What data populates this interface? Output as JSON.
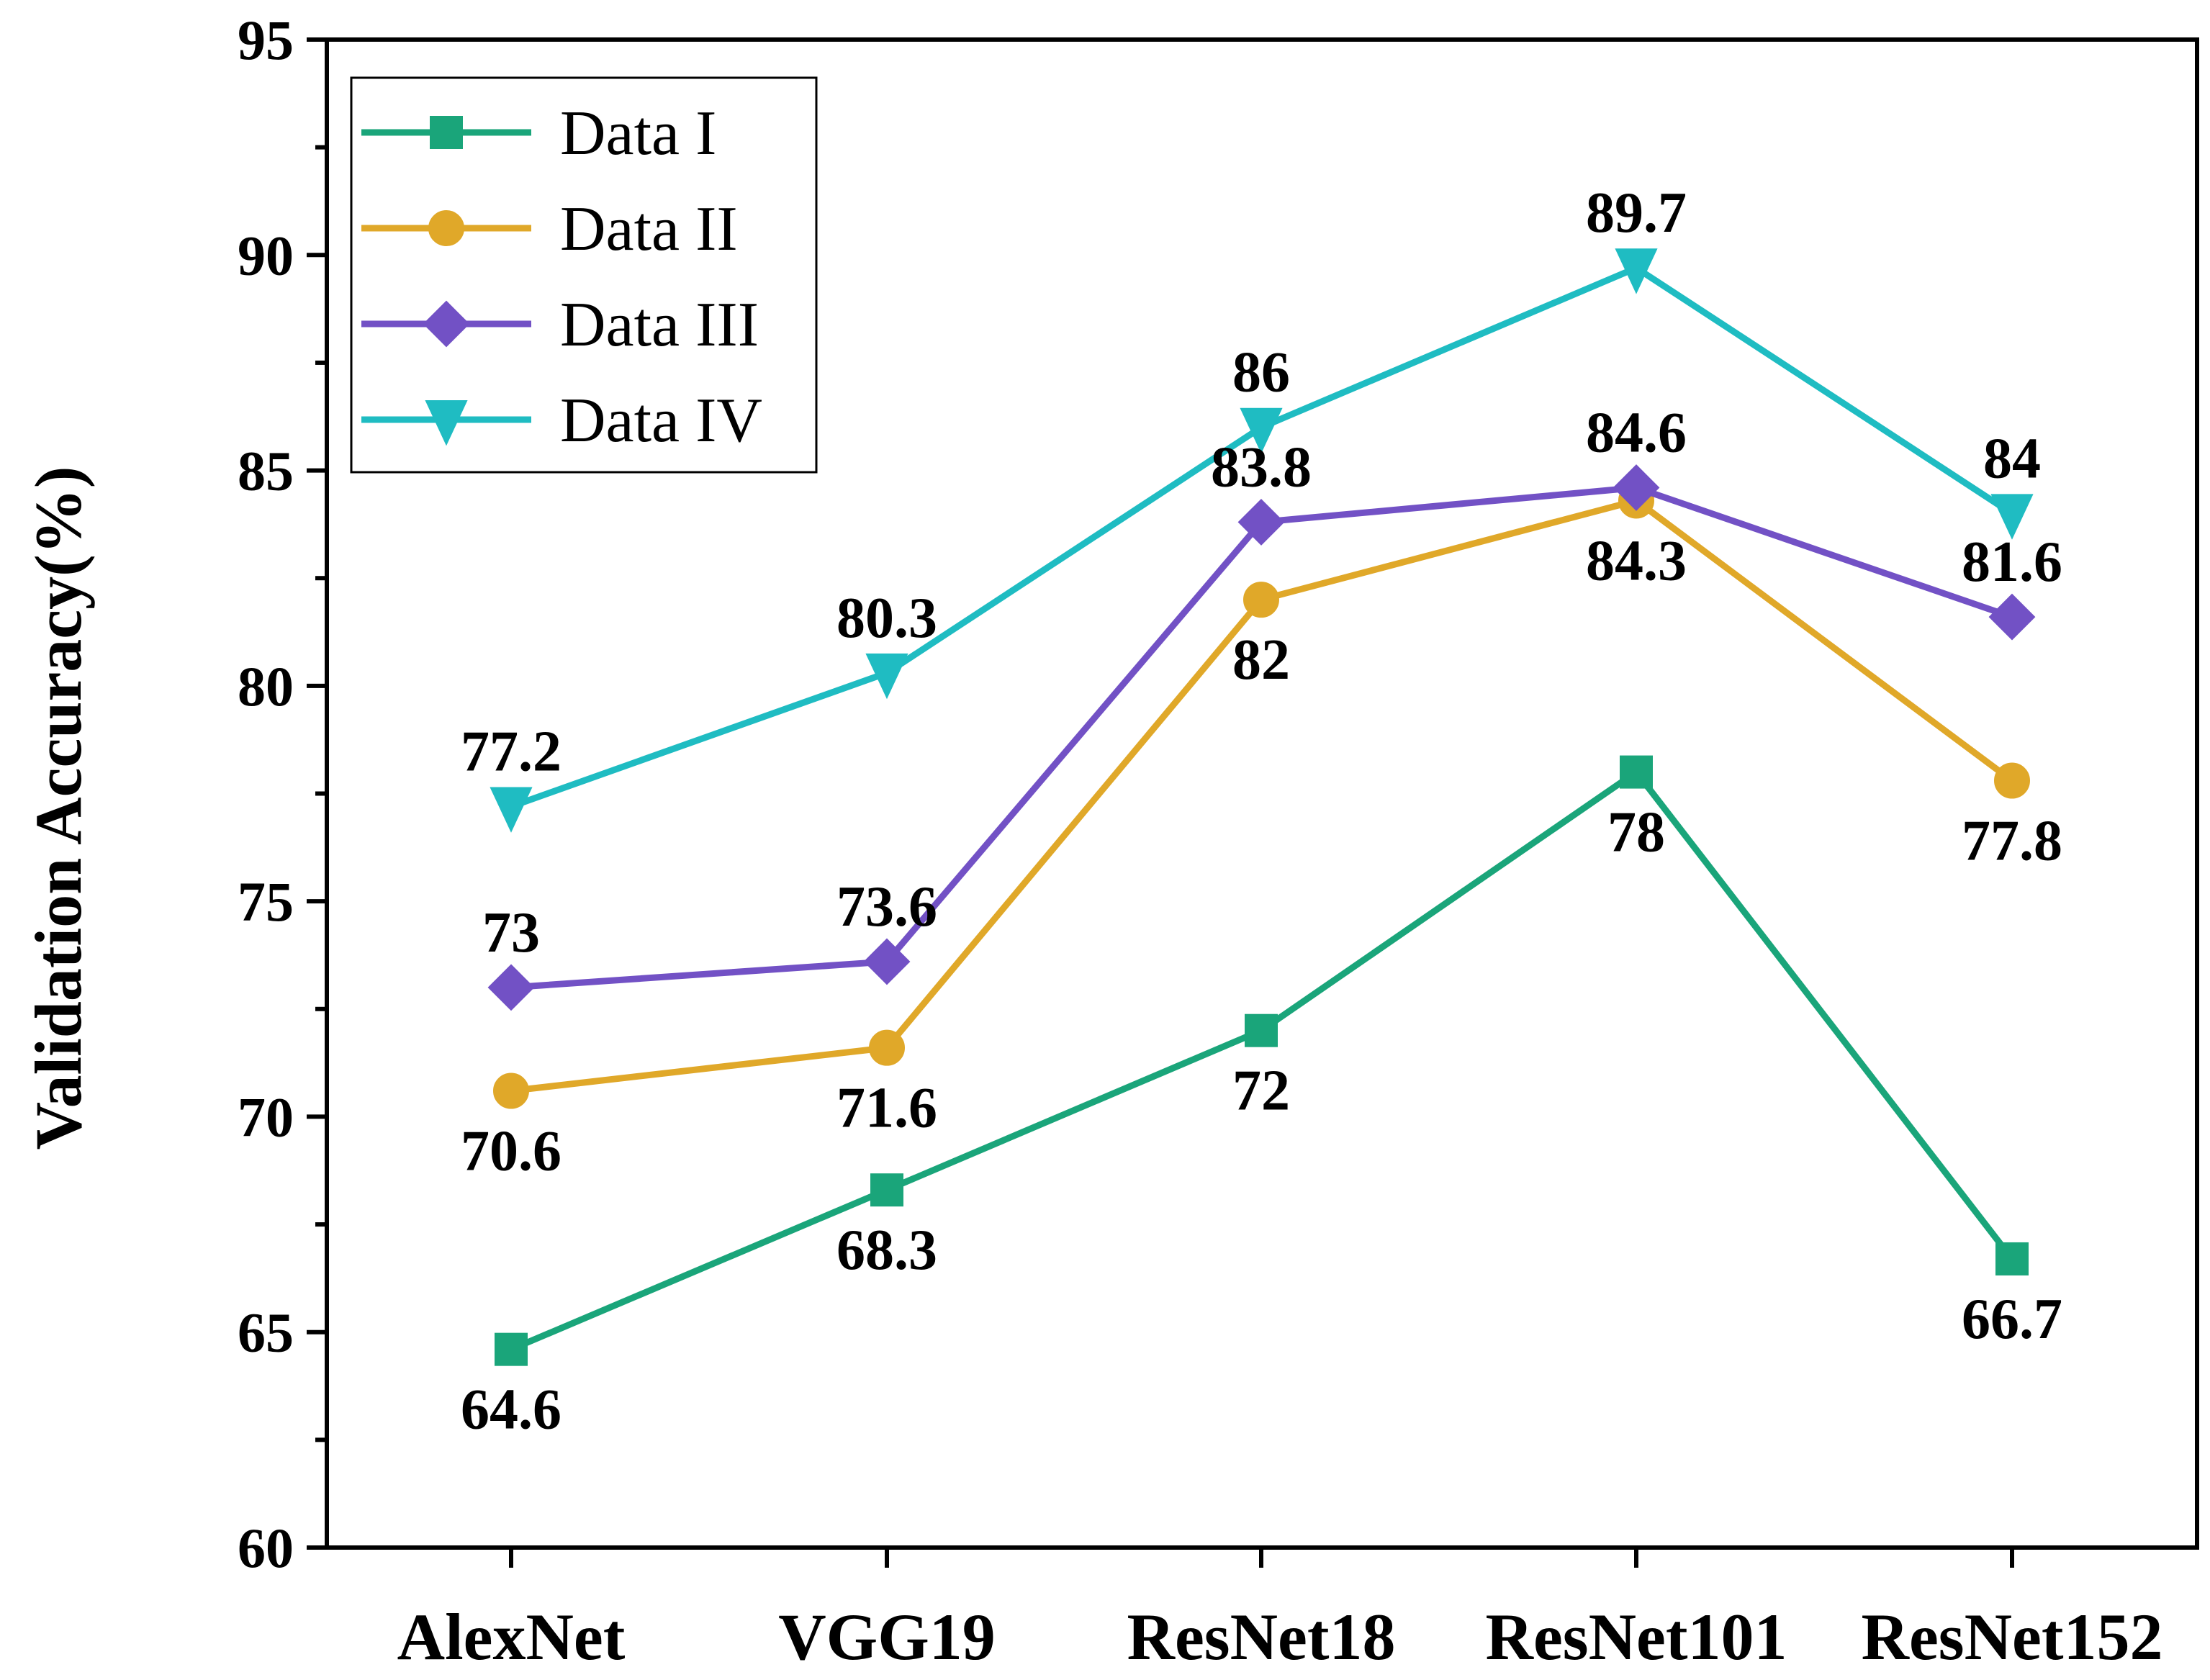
{
  "chart_data": {
    "type": "line",
    "title": "",
    "xlabel": "",
    "ylabel": "Validation Accuracy(%)",
    "ylim": [
      60,
      95
    ],
    "yticks": [
      60,
      65,
      70,
      75,
      80,
      85,
      90,
      95
    ],
    "grid": false,
    "legend_position": "top-left",
    "categories": [
      "AlexNet",
      "VGG19",
      "ResNet18",
      "ResNet101",
      "ResNet152"
    ],
    "series": [
      {
        "name": "Data I",
        "color": "#1aa57a",
        "marker": "square",
        "values": [
          64.6,
          68.3,
          72,
          78,
          66.7
        ],
        "value_labels": [
          "64.6",
          "68.3",
          "72",
          "78",
          "66.7"
        ],
        "label_positions": [
          "below",
          "below",
          "below",
          "below",
          "below"
        ]
      },
      {
        "name": "Data II",
        "color": "#e0a829",
        "marker": "circle",
        "values": [
          70.6,
          71.6,
          82,
          84.3,
          77.8
        ],
        "value_labels": [
          "70.6",
          "71.6",
          "82",
          "84.3",
          "77.8"
        ],
        "label_positions": [
          "below",
          "below",
          "below",
          "below",
          "below"
        ]
      },
      {
        "name": "Data III",
        "color": "#7251c5",
        "marker": "diamond",
        "values": [
          73,
          73.6,
          83.8,
          84.6,
          81.6
        ],
        "value_labels": [
          "73",
          "73.6",
          "83.8",
          "84.6",
          "81.6"
        ],
        "label_positions": [
          "above",
          "above",
          "above",
          "above",
          "above"
        ]
      },
      {
        "name": "Data IV",
        "color": "#1fbcc2",
        "marker": "triangle-down",
        "values": [
          77.2,
          80.3,
          86,
          89.7,
          84
        ],
        "value_labels": [
          "77.2",
          "80.3",
          "86",
          "89.7",
          "84"
        ],
        "label_positions": [
          "above",
          "above",
          "above",
          "above",
          "above"
        ]
      }
    ]
  }
}
